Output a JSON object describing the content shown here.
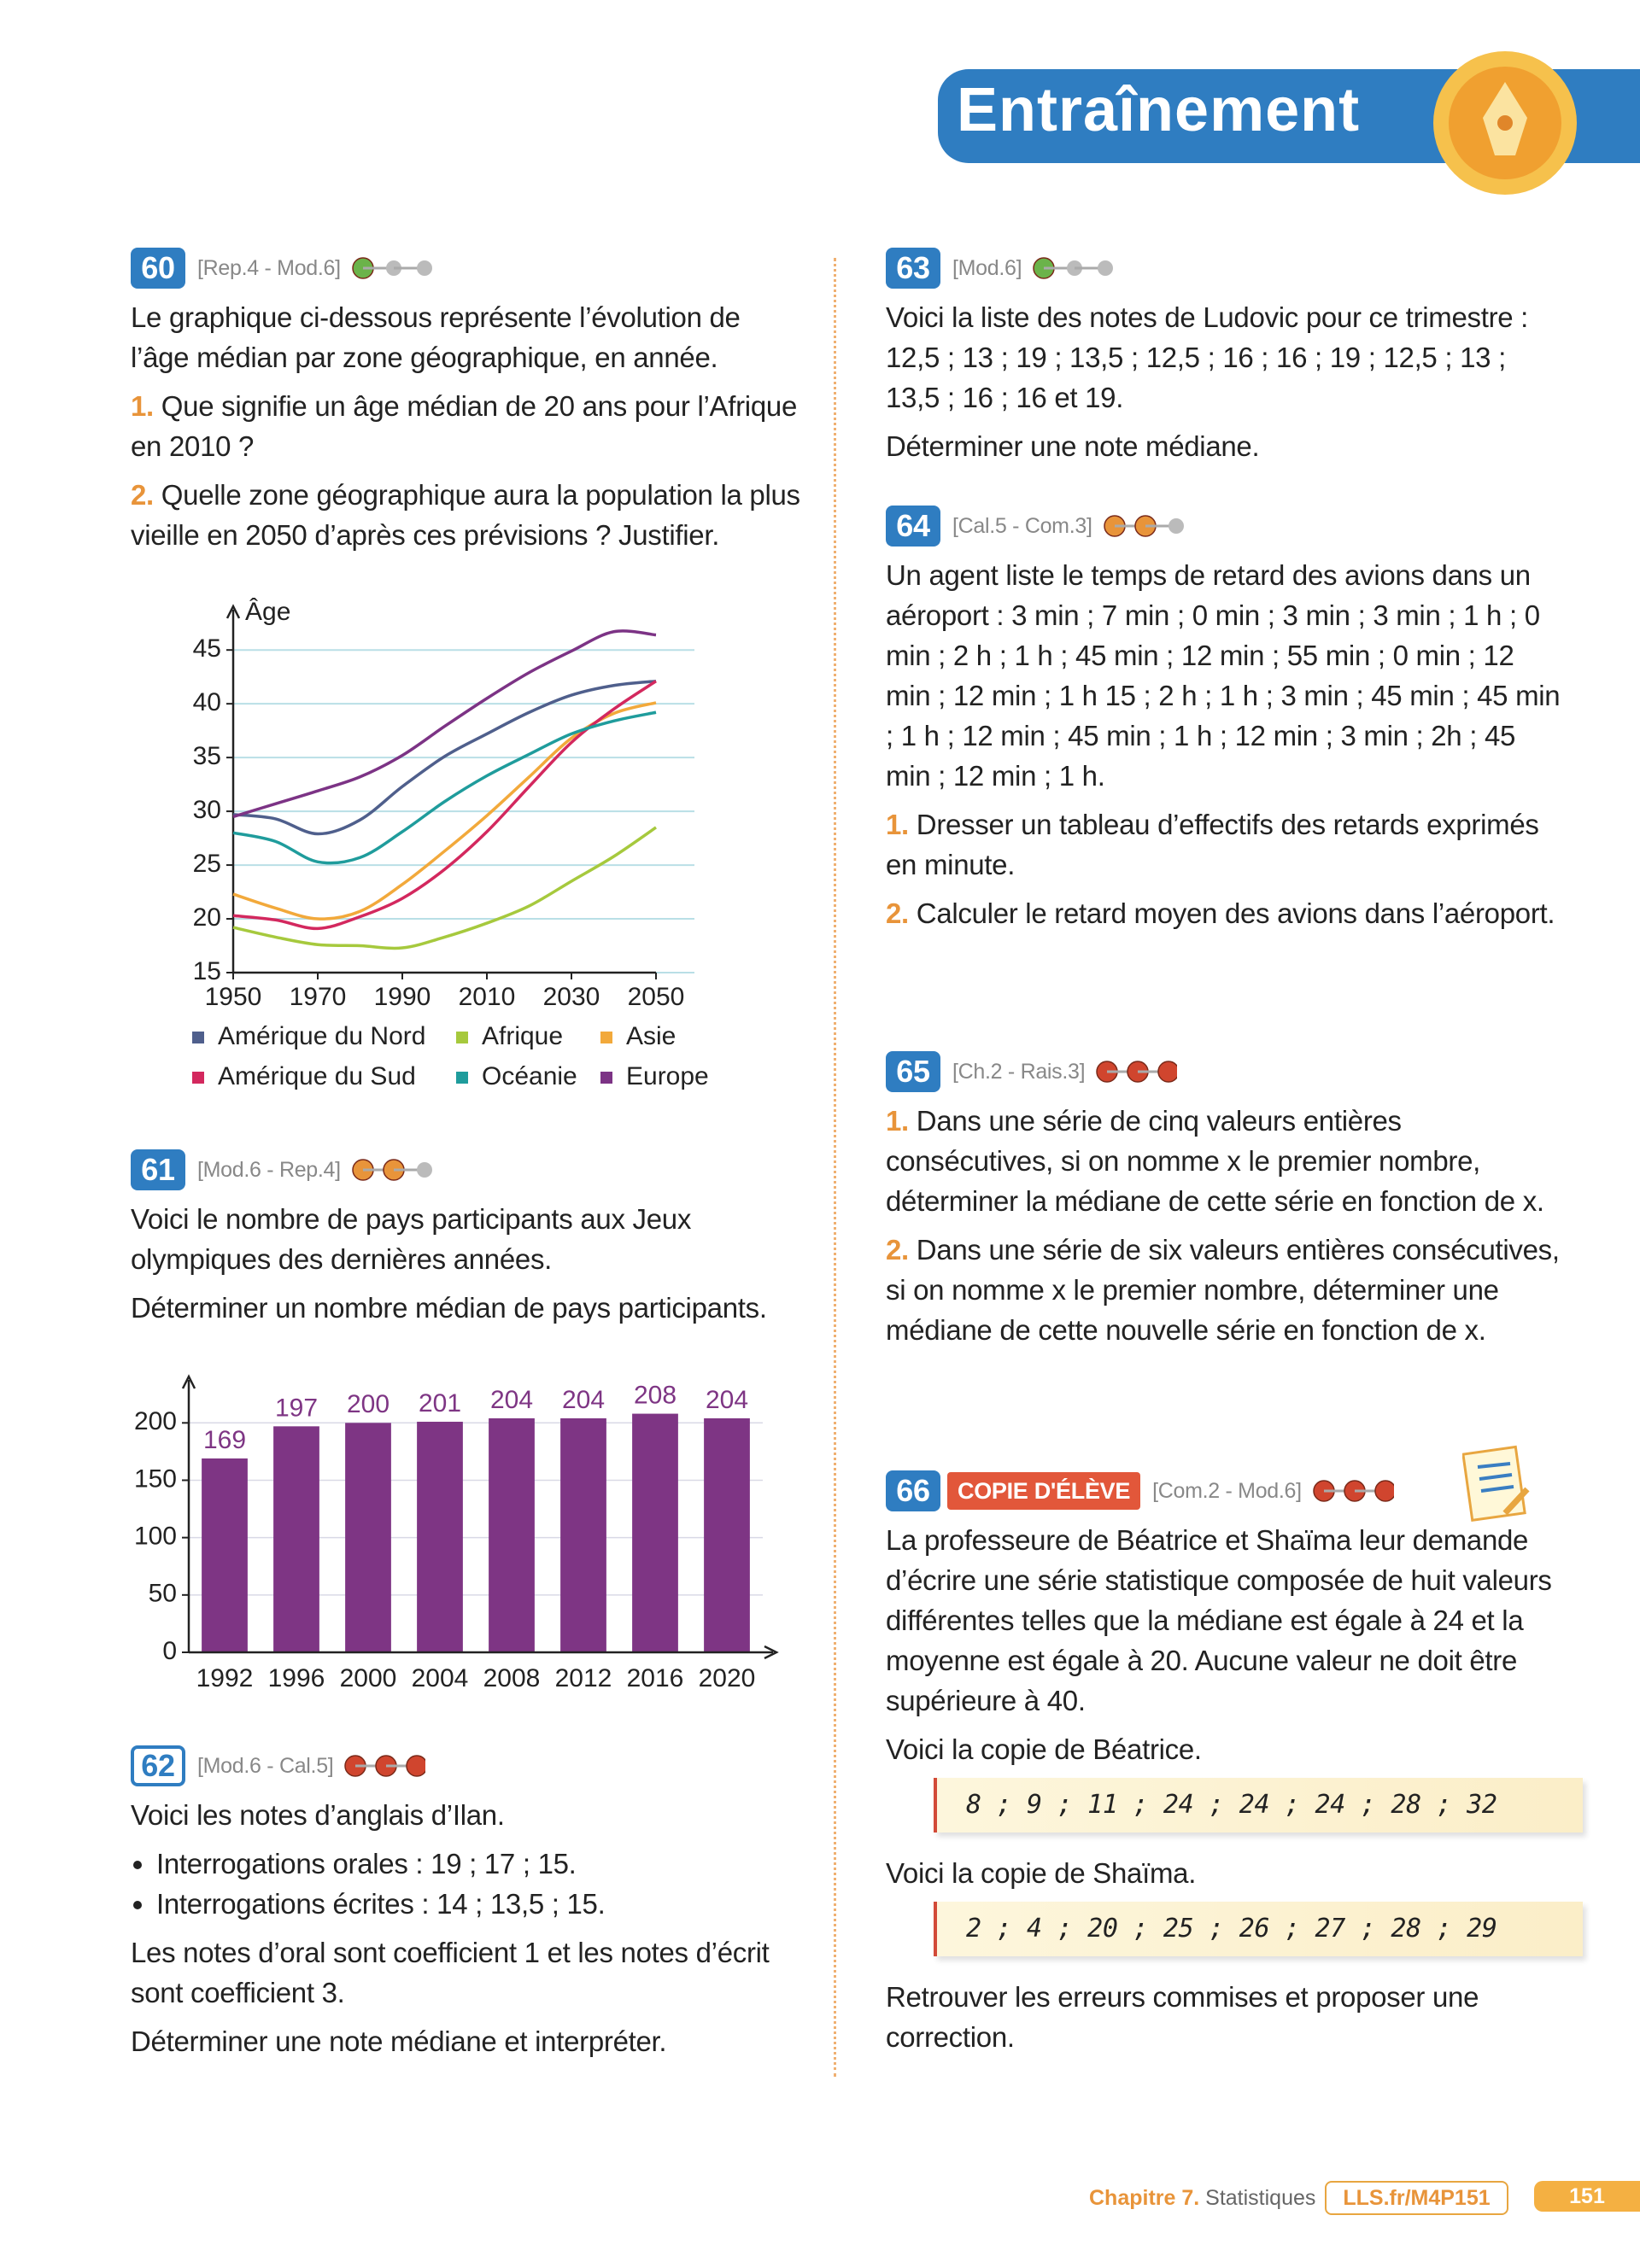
{
  "header": {
    "title": "Entraînement"
  },
  "exercises": [
    {
      "number": "60",
      "ref": "[Rep.4 - Mod.6]",
      "blocks": [
        {
          "text": "Le graphique ci-dessous représente l’évolution de l’âge médian par zone géographique, en année."
        },
        {
          "num": "1.",
          "text": "Que signifie un âge médian de 20 ans pour l’Afrique en 2010 ?"
        },
        {
          "num": "2.",
          "text": "Quelle zone géographique aura la population la plus vieille en 2050 d’après ces prévisions ? Justifier."
        }
      ]
    },
    {
      "number": "61",
      "ref": "[Mod.6 - Rep.4]",
      "blocks": [
        {
          "text": "Voici le nombre de pays participants aux Jeux olympiques des dernières années."
        },
        {
          "text": "Déterminer un nombre médian de pays participants."
        }
      ]
    },
    {
      "number": "62",
      "ref": "[Mod.6 - Cal.5]",
      "blocks": [
        {
          "text": "Voici les notes d’anglais d’Ilan."
        },
        {
          "item": "Interrogations orales : 19 ; 17 ; 15."
        },
        {
          "item": "Interrogations écrites : 14 ; 13,5 ; 15."
        },
        {
          "text": "Les notes d’oral sont coefficient 1 et les notes d’écrit sont coefficient 3."
        },
        {
          "text": "Déterminer une note médiane et interpréter."
        }
      ]
    },
    {
      "number": "63",
      "ref": "[Mod.6]",
      "blocks": [
        {
          "text": "Voici la liste des notes de Ludovic pour ce trimestre : 12,5 ; 13 ; 19 ; 13,5 ; 12,5 ; 16 ; 16 ; 19 ; 12,5 ; 13 ; 13,5 ; 16 ; 16 et 19."
        },
        {
          "text": "Déterminer une note médiane."
        }
      ]
    },
    {
      "number": "64",
      "ref": "[Cal.5 - Com.3]",
      "blocks": [
        {
          "text": "Un agent liste le temps de retard des avions dans un aéroport : 3 min ; 7 min ; 0 min ; 3 min ; 3 min ; 1 h ; 0 min ; 2 h ; 1 h ; 45 min ; 12 min ; 55 min ; 0 min ; 12 min ; 12 min ; 1 h 15 ; 2 h ; 1 h ; 3 min ; 45 min ; 45 min ; 1 h ; 12 min ; 45 min ; 1 h ; 12 min ; 3 min ; 2h ; 45 min ; 12 min ; 1 h."
        },
        {
          "num": "1.",
          "text": "Dresser un tableau d’effectifs des retards exprimés en minute."
        },
        {
          "num": "2.",
          "text": "Calculer le retard moyen des avions dans l’aéroport."
        }
      ]
    },
    {
      "number": "65",
      "ref": "[Ch.2 - Rais.3]",
      "blocks": [
        {
          "num": "1.",
          "text": "Dans une série de cinq valeurs entières consécutives, si on nomme x le premier nombre, déterminer la médiane de cette série en fonction de x."
        },
        {
          "num": "2.",
          "text": "Dans une série de six valeurs entières consécutives, si on nomme x le premier nombre, déterminer une médiane de cette nouvelle série en fonction de x."
        }
      ]
    },
    {
      "number": "66",
      "label": "COPIE D'ÉLÈVE",
      "ref": "[Com.2 - Mod.6]",
      "blocks": [
        {
          "text": "La professeure de Béatrice et Shaïma leur demande d’écrire une série statistique composée de huit valeurs différentes telles que la médiane est égale à 24 et la moyenne est égale à 20. Aucune valeur ne doit être supérieure à 40."
        },
        {
          "text": "Voici la copie de Béatrice."
        },
        {
          "copy": "8 ; 9 ; 11 ; 24 ; 24 ; 24 ; 28 ; 32"
        },
        {
          "text": "Voici la copie de Shaïma."
        },
        {
          "copy": "2 ; 4 ; 20 ; 25 ; 26 ; 27 ; 28 ; 29"
        },
        {
          "text": "Retrouver les erreurs commises et proposer une correction."
        }
      ]
    }
  ],
  "chart_data": [
    {
      "type": "line",
      "y_label": "Âge",
      "x": [
        1950,
        1960,
        1970,
        1980,
        1990,
        2000,
        2010,
        2020,
        2030,
        2040,
        2050
      ],
      "xlim": [
        1950,
        2050
      ],
      "xticks": [
        1950,
        1970,
        1990,
        2010,
        2030,
        2050
      ],
      "ylim": [
        15,
        47
      ],
      "yticks": [
        15,
        20,
        25,
        30,
        35,
        40,
        45
      ],
      "grid": true,
      "series": [
        {
          "name": "Amérique du Nord",
          "color": "#4f5f8c",
          "values": [
            29.7,
            29.3,
            27.9,
            29.2,
            32.3,
            35.1,
            37.2,
            39.2,
            40.8,
            41.7,
            42.1
          ]
        },
        {
          "name": "Afrique",
          "color": "#a6c93d",
          "values": [
            19.2,
            18.3,
            17.6,
            17.5,
            17.3,
            18.3,
            19.6,
            21.2,
            23.5,
            25.8,
            28.5
          ]
        },
        {
          "name": "Asie",
          "color": "#f2a93b",
          "values": [
            22.3,
            21,
            20,
            20.7,
            23.2,
            26.3,
            29.6,
            33.2,
            36.8,
            39.1,
            40.1
          ]
        },
        {
          "name": "Amérique du Sud",
          "color": "#d3285e",
          "values": [
            20.3,
            19.9,
            19.1,
            20.2,
            21.9,
            24.6,
            28.1,
            32.3,
            36.4,
            39.5,
            42.1
          ]
        },
        {
          "name": "Océanie",
          "color": "#1f9c9c",
          "values": [
            28,
            27.2,
            25.3,
            25.7,
            28.1,
            30.9,
            33.3,
            35.3,
            37.2,
            38.4,
            39.2
          ]
        },
        {
          "name": "Europe",
          "color": "#7c3385",
          "values": [
            29.5,
            30.7,
            31.9,
            33.2,
            35.2,
            37.9,
            40.5,
            42.9,
            44.9,
            46.7,
            46.4
          ]
        }
      ]
    },
    {
      "type": "bar",
      "categories": [
        "1992",
        "1996",
        "2000",
        "2004",
        "2008",
        "2012",
        "2016",
        "2020"
      ],
      "values": [
        169,
        197,
        200,
        201,
        204,
        204,
        208,
        204
      ],
      "color": "#7e3584",
      "ylim": [
        0,
        230
      ],
      "yticks": [
        0,
        50,
        100,
        150,
        200
      ],
      "grid": true
    }
  ],
  "footer": {
    "chapter": "Chapitre 7.",
    "section": "Statistiques",
    "link": "LLS.fr/M4P151",
    "page": "151"
  }
}
